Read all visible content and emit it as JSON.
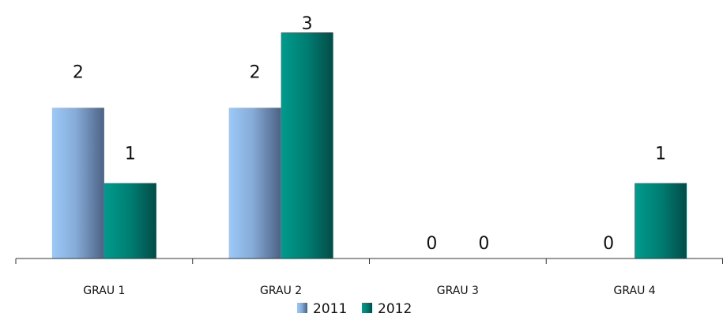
{
  "chart_data": {
    "type": "bar",
    "categories": [
      "GRAU 1",
      "GRAU 2",
      "GRAU 3",
      "GRAU 4"
    ],
    "series": [
      {
        "name": "2011",
        "values": [
          2,
          2,
          0,
          0
        ],
        "color": "#8fb8e8"
      },
      {
        "name": "2012",
        "values": [
          1,
          3,
          0,
          1
        ],
        "color": "#009a8c"
      }
    ],
    "ylim": [
      0,
      3
    ],
    "grid": false,
    "legend_position": "bottom",
    "title": "",
    "xlabel": "",
    "ylabel": ""
  }
}
